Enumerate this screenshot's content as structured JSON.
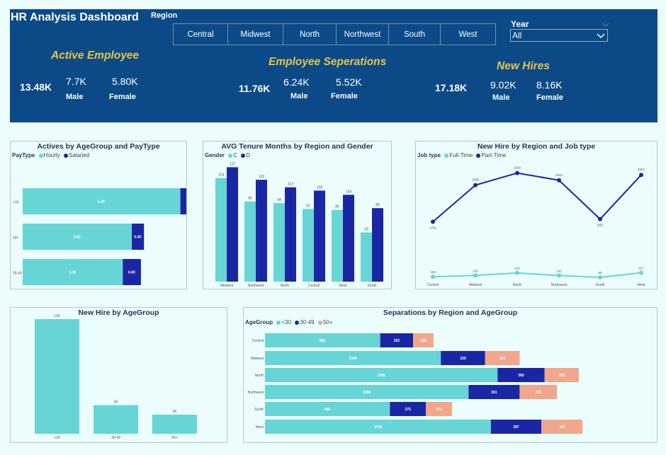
{
  "header": {
    "title": "HR Analysis Dashboard",
    "region_label": "Region",
    "regions": [
      "Central",
      "Midwest",
      "North",
      "Northwest",
      "South",
      "West"
    ],
    "year_label": "Year",
    "year_value": "All",
    "kpis": [
      {
        "title": "Active Employee",
        "total": "13.48K",
        "male_value": "7.7K",
        "female_value": "5.80K",
        "male_label": "Male",
        "female_label": "Female"
      },
      {
        "title": "Employee Seperations",
        "total": "11.76K",
        "male_value": "6.24K",
        "female_value": "5.52K",
        "male_label": "Male",
        "female_label": "Female"
      },
      {
        "title": "New Hires",
        "total": "17.18K",
        "male_value": "9.02K",
        "female_value": "8.16K",
        "male_label": "Male",
        "female_label": "Female"
      }
    ]
  },
  "colors": {
    "teal": "#67d5d5",
    "navy": "#1a27a4",
    "salmon": "#f0a78b",
    "header_bg": "#0b4a86",
    "kpi_title": "#e8c447"
  },
  "chart_data": [
    {
      "id": "actives",
      "type": "bar",
      "title": "Actives by AgeGroup and PayType",
      "legend_title": "PayType",
      "orientation": "horizontal",
      "stacked": true,
      "categories": [
        "<30",
        "50+",
        "30-49"
      ],
      "series": [
        {
          "name": "Hourly",
          "color": "#67d5d5",
          "values": [
            5.2,
            3.6,
            3.3
          ],
          "labels": [
            "5.2K",
            "3.6K",
            "3.3K"
          ]
        },
        {
          "name": "Salaried",
          "color": "#1a27a4",
          "values": [
            0.2,
            0.4,
            0.6
          ],
          "labels": [
            "",
            "0.4K",
            "0.6K"
          ]
        }
      ]
    },
    {
      "id": "tenure",
      "type": "bar",
      "title": "AVG Tenure Months by Region and Gender",
      "legend_title": "Gender",
      "categories": [
        "Midwest",
        "Northwest",
        "North",
        "Central",
        "West",
        "South"
      ],
      "ylim": [
        0,
        140
      ],
      "series": [
        {
          "name": "C",
          "color": "#67d5d5",
          "values": [
            124,
            96,
            94,
            87,
            86,
            59
          ]
        },
        {
          "name": "D",
          "color": "#1a27a4",
          "values": [
            137,
            122,
            113,
            109,
            104,
            88
          ]
        }
      ]
    },
    {
      "id": "newhire_region",
      "type": "line",
      "title": "New Hire by Region and Job type",
      "legend_title": "Job type",
      "categories": [
        "Central",
        "Midwest",
        "North",
        "Northwest",
        "South",
        "West"
      ],
      "ylim": [
        0,
        3400
      ],
      "series": [
        {
          "name": "Full-Time",
          "color": "#67d5d5",
          "values": [
            106,
            145,
            222,
            142,
            85,
            227
          ]
        },
        {
          "name": "Part-Time",
          "color": "#1a27a4",
          "values": [
            1781,
            2896,
            3265,
            3044,
            1861,
            3207
          ]
        }
      ]
    },
    {
      "id": "newhire_age",
      "type": "bar",
      "title": "New Hire by AgeGroup",
      "categories": [
        "<30",
        "30-49",
        "50+"
      ],
      "ylim": [
        0,
        12
      ],
      "values": [
        12,
        3,
        2
      ],
      "labels": [
        "12K",
        "3K",
        "2K"
      ],
      "color": "#67d5d5"
    },
    {
      "id": "separations",
      "type": "bar",
      "title": "Separations by Region and AgeGroup",
      "legend_title": "AgeGroup",
      "orientation": "horizontal",
      "stacked": true,
      "categories": [
        "Central",
        "Midwest",
        "North",
        "Northwest",
        "South",
        "West"
      ],
      "series": [
        {
          "name": "<30",
          "color": "#67d5d5",
          "values": [
            882,
            1346,
            1780,
            1558,
            956,
            1729
          ]
        },
        {
          "name": "30-49",
          "color": "#1a27a4",
          "values": [
            252,
            339,
            360,
            391,
            275,
            387
          ]
        },
        {
          "name": "50+",
          "color": "#f0a78b",
          "values": [
            156,
            264,
            262,
            286,
            201,
            314
          ]
        }
      ]
    }
  ]
}
